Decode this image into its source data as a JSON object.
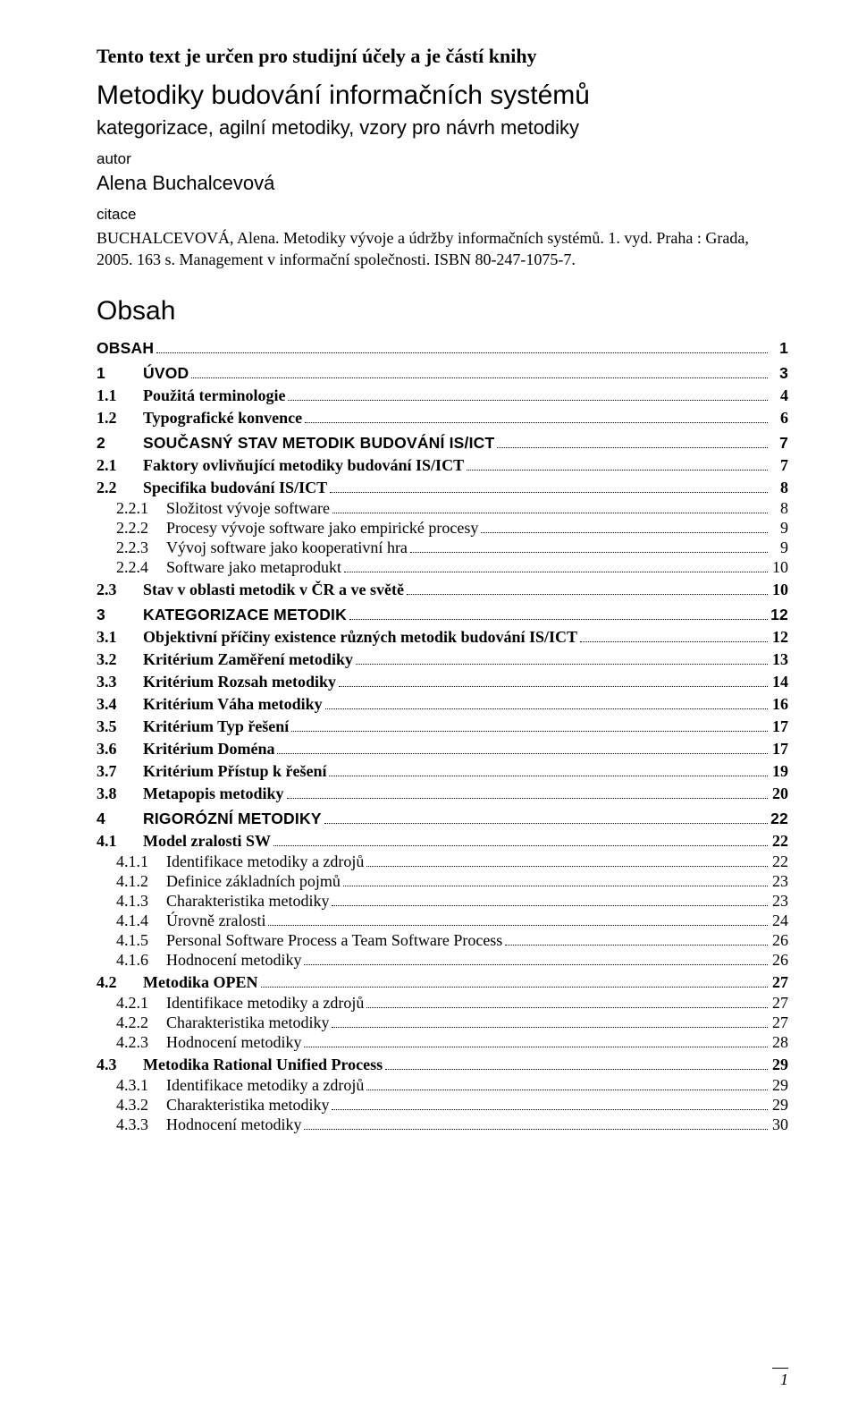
{
  "header": {
    "intro": "Tento text je určen pro studijní účely a je částí knihy",
    "book_title": "Metodiky budování informačních systémů",
    "subtitle": "kategorizace, agilní metodiky, vzory pro návrh metodiky",
    "autor_label": "autor",
    "author": "Alena Buchalcevová",
    "citace_label": "citace",
    "citation": "BUCHALCEVOVÁ, Alena. Metodiky vývoje a údržby informačních systémů. 1. vyd. Praha : Grada, 2005. 163 s. Management v informační společnosti. ISBN 80-247-1075-7."
  },
  "obsah_title": "Obsah",
  "toc": [
    {
      "level": 0,
      "num": "",
      "title": "OBSAH",
      "page": "1"
    },
    {
      "level": 0,
      "num": "1",
      "title": "ÚVOD",
      "page": "3"
    },
    {
      "level": 1,
      "num": "1.1",
      "title": "Použitá terminologie",
      "page": "4"
    },
    {
      "level": 1,
      "num": "1.2",
      "title": "Typografické konvence",
      "page": "6"
    },
    {
      "level": 0,
      "num": "2",
      "title": "SOUČASNÝ STAV METODIK BUDOVÁNÍ IS/ICT",
      "page": "7"
    },
    {
      "level": 1,
      "num": "2.1",
      "title": "Faktory ovlivňující metodiky budování IS/ICT",
      "page": "7"
    },
    {
      "level": 1,
      "num": "2.2",
      "title": "Specifika budování IS/ICT",
      "page": "8"
    },
    {
      "level": 2,
      "num": "2.2.1",
      "title": "Složitost vývoje software",
      "page": "8"
    },
    {
      "level": 2,
      "num": "2.2.2",
      "title": "Procesy vývoje software jako empirické procesy",
      "page": "9"
    },
    {
      "level": 2,
      "num": "2.2.3",
      "title": "Vývoj software jako kooperativní hra",
      "page": "9"
    },
    {
      "level": 2,
      "num": "2.2.4",
      "title": "Software jako metaprodukt",
      "page": "10"
    },
    {
      "level": 1,
      "num": "2.3",
      "title": "Stav v oblasti metodik v ČR a ve světě",
      "page": "10"
    },
    {
      "level": 0,
      "num": "3",
      "title": "KATEGORIZACE METODIK",
      "page": "12"
    },
    {
      "level": 1,
      "num": "3.1",
      "title": "Objektivní příčiny existence různých metodik budování IS/ICT",
      "page": "12"
    },
    {
      "level": 1,
      "num": "3.2",
      "title": "Kritérium Zaměření metodiky",
      "page": "13"
    },
    {
      "level": 1,
      "num": "3.3",
      "title": "Kritérium Rozsah metodiky",
      "page": "14"
    },
    {
      "level": 1,
      "num": "3.4",
      "title": "Kritérium Váha metodiky",
      "page": "16"
    },
    {
      "level": 1,
      "num": "3.5",
      "title": "Kritérium Typ řešení",
      "page": "17"
    },
    {
      "level": 1,
      "num": "3.6",
      "title": "Kritérium Doména",
      "page": "17"
    },
    {
      "level": 1,
      "num": "3.7",
      "title": "Kritérium Přístup k řešení",
      "page": "19"
    },
    {
      "level": 1,
      "num": "3.8",
      "title": "Metapopis metodiky",
      "page": "20"
    },
    {
      "level": 0,
      "num": "4",
      "title": "RIGORÓZNÍ METODIKY",
      "page": "22"
    },
    {
      "level": 1,
      "num": "4.1",
      "title": "Model zralosti SW",
      "page": "22"
    },
    {
      "level": 2,
      "num": "4.1.1",
      "title": "Identifikace metodiky a zdrojů",
      "page": "22"
    },
    {
      "level": 2,
      "num": "4.1.2",
      "title": "Definice základních pojmů",
      "page": "23"
    },
    {
      "level": 2,
      "num": "4.1.3",
      "title": "Charakteristika metodiky",
      "page": "23"
    },
    {
      "level": 2,
      "num": "4.1.4",
      "title": "Úrovně zralosti",
      "page": "24"
    },
    {
      "level": 2,
      "num": "4.1.5",
      "title": "Personal Software Process  a Team Software Process",
      "page": "26"
    },
    {
      "level": 2,
      "num": "4.1.6",
      "title": "Hodnocení metodiky",
      "page": "26"
    },
    {
      "level": 1,
      "num": "4.2",
      "title": "Metodika OPEN",
      "page": "27"
    },
    {
      "level": 2,
      "num": "4.2.1",
      "title": "Identifikace metodiky a zdrojů",
      "page": "27"
    },
    {
      "level": 2,
      "num": "4.2.2",
      "title": "Charakteristika metodiky",
      "page": "27"
    },
    {
      "level": 2,
      "num": "4.2.3",
      "title": "Hodnocení metodiky",
      "page": "28"
    },
    {
      "level": 1,
      "num": "4.3",
      "title": "Metodika Rational Unified Process",
      "page": "29"
    },
    {
      "level": 2,
      "num": "4.3.1",
      "title": "Identifikace metodiky a zdrojů",
      "page": "29"
    },
    {
      "level": 2,
      "num": "4.3.2",
      "title": "Charakteristika metodiky",
      "page": "29"
    },
    {
      "level": 2,
      "num": "4.3.3",
      "title": "Hodnocení metodiky",
      "page": "30"
    }
  ],
  "page_number": "1"
}
